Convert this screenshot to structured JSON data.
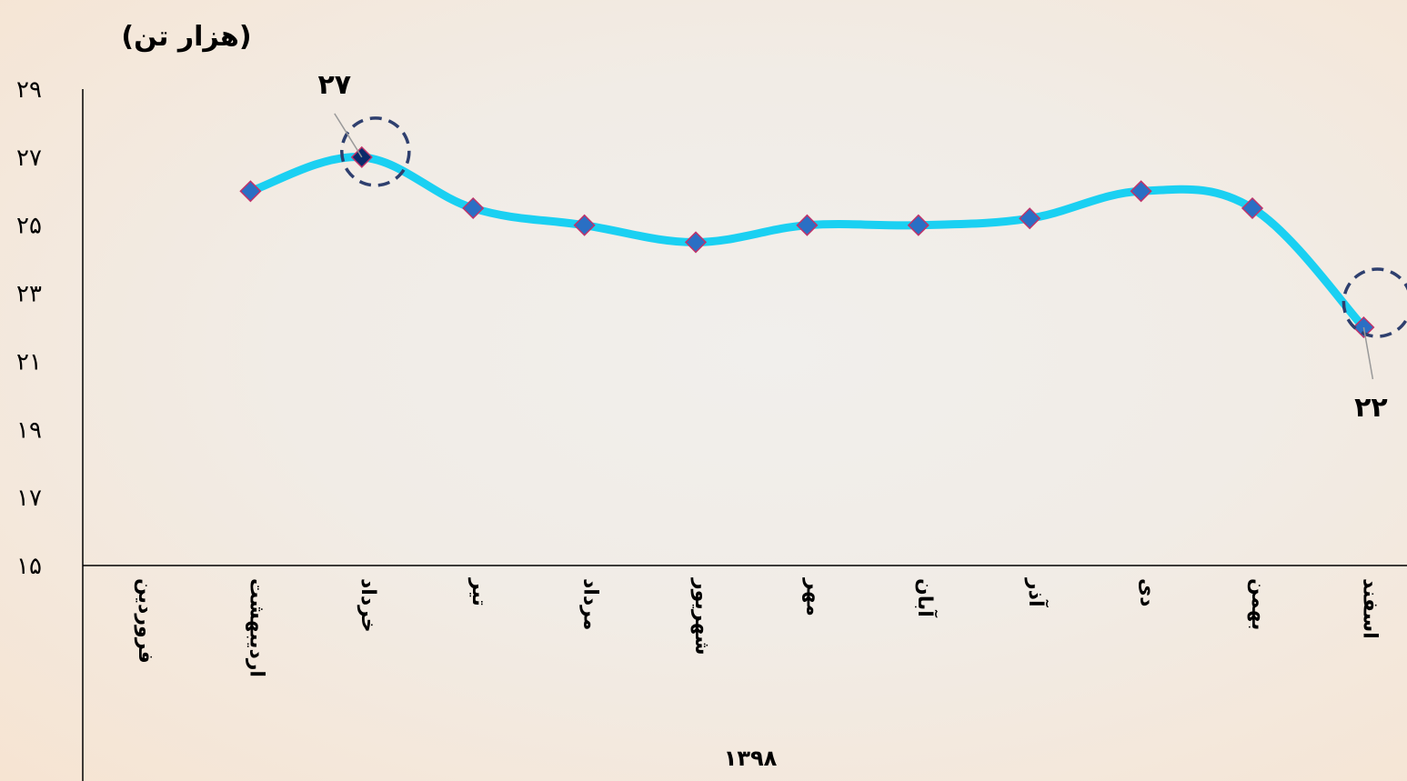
{
  "chart_data": {
    "type": "line",
    "ylabel": "(هزار تن)",
    "xlabel": "۱۳۹۸",
    "ylim": [
      15,
      29
    ],
    "yticks": [
      15,
      17,
      19,
      21,
      23,
      25,
      27,
      29
    ],
    "ytick_labels": [
      "۱۵",
      "۱۷",
      "۱۹",
      "۲۱",
      "۲۳",
      "۲۵",
      "۲۷",
      "۲۹"
    ],
    "categories": [
      "فروردین",
      "اردیبهشت",
      "خرداد",
      "تیر",
      "مرداد",
      "شهریور",
      "مهر",
      "آبان",
      "آذر",
      "دی",
      "بهمن",
      "اسفند"
    ],
    "series": [
      {
        "values": [
          null,
          26.0,
          27.0,
          25.5,
          25.0,
          24.5,
          25.0,
          25.0,
          25.2,
          26.0,
          25.5,
          22.0
        ],
        "line_color": "#1ad0f2",
        "marker_color": "#2a6fc4",
        "marker_edge": "#c0336a"
      }
    ],
    "data_labels": [
      {
        "index": 2,
        "text": "۲۷",
        "position": "above"
      },
      {
        "index": 11,
        "text": "۲۲",
        "position": "below"
      }
    ],
    "highlighted_points": [
      2,
      11
    ],
    "legend": "none",
    "grid": false
  }
}
